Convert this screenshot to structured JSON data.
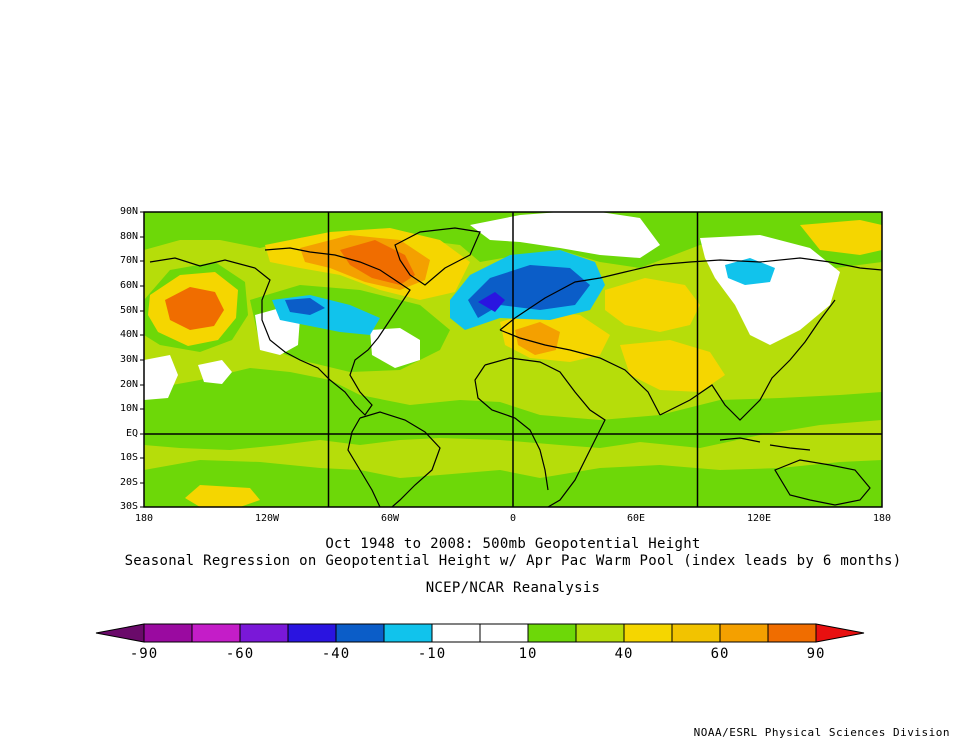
{
  "map": {
    "lat_labels": [
      "90N",
      "80N",
      "70N",
      "60N",
      "50N",
      "40N",
      "30N",
      "20N",
      "10N",
      "EQ",
      "10S",
      "20S",
      "30S"
    ],
    "lon_labels": [
      "180",
      "120W",
      "60W",
      "0",
      "60E",
      "120E",
      "180"
    ],
    "extent": {
      "lon": [
        -180,
        180
      ],
      "lat": [
        -30,
        90
      ]
    }
  },
  "titles": {
    "line1": "Oct 1948 to 2008: 500mb Geopotential Height",
    "line2": "Seasonal Regression on Geopotential Height  w/ Apr Pac Warm Pool (index leads by 6 months)",
    "line3": "NCEP/NCAR Reanalysis"
  },
  "colorbar": {
    "labels": [
      "-90",
      "-60",
      "-40",
      "-10",
      "10",
      "40",
      "60",
      "90"
    ],
    "colors": [
      "#9a0aa0",
      "#c41dc8",
      "#7a18d8",
      "#2a14e0",
      "#0b5dc8",
      "#11c3ec",
      "#ffffff",
      "#ffffff",
      "#6dd808",
      "#b6dd0a",
      "#f5d600",
      "#f2c300",
      "#f4a000",
      "#f06d00"
    ],
    "end_low": "#6a0a6a",
    "end_high": "#e81010"
  },
  "credit": "NOAA/ESRL Physical Sciences Division"
}
